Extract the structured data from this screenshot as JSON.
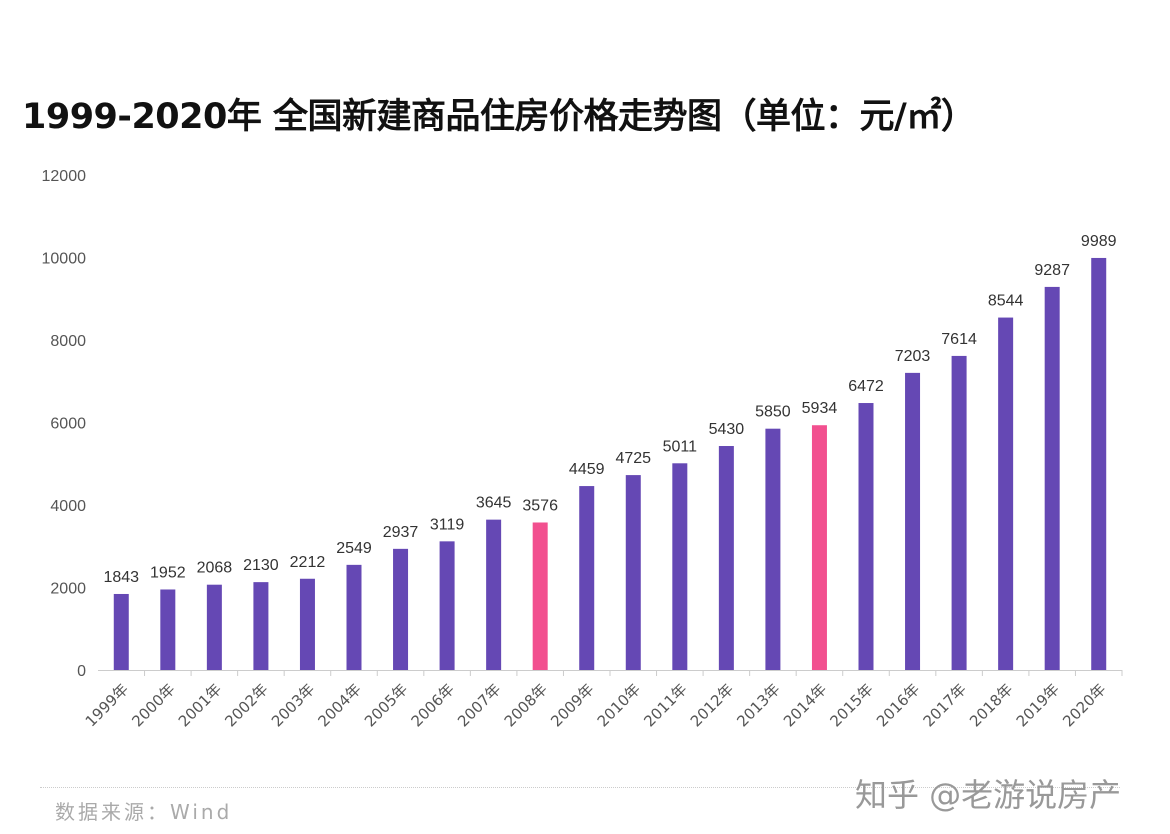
{
  "chart_data": {
    "type": "bar",
    "title": "1999-2020年 全国新建商品住房价格走势图（单位：元/㎡）",
    "categories": [
      "1999年",
      "2000年",
      "2001年",
      "2002年",
      "2003年",
      "2004年",
      "2005年",
      "2006年",
      "2007年",
      "2008年",
      "2009年",
      "2010年",
      "2011年",
      "2012年",
      "2013年",
      "2014年",
      "2015年",
      "2016年",
      "2017年",
      "2018年",
      "2019年",
      "2020年"
    ],
    "values": [
      1843,
      1952,
      2068,
      2130,
      2212,
      2549,
      2937,
      3119,
      3645,
      3576,
      4459,
      4725,
      5011,
      5430,
      5850,
      5934,
      6472,
      7203,
      7614,
      8544,
      9287,
      9989
    ],
    "highlighted": [
      "2008年",
      "2014年"
    ],
    "ylim": [
      0,
      12000
    ],
    "yticks": [
      0,
      2000,
      4000,
      6000,
      8000,
      10000,
      12000
    ],
    "grid": false,
    "colors": {
      "bar": "#6548b4",
      "highlight": "#f2508f",
      "text": "#333333",
      "axis": "#cccccc"
    }
  },
  "footer": {
    "source": "数据来源：Wind",
    "watermark": "知乎 @老游说房产"
  }
}
